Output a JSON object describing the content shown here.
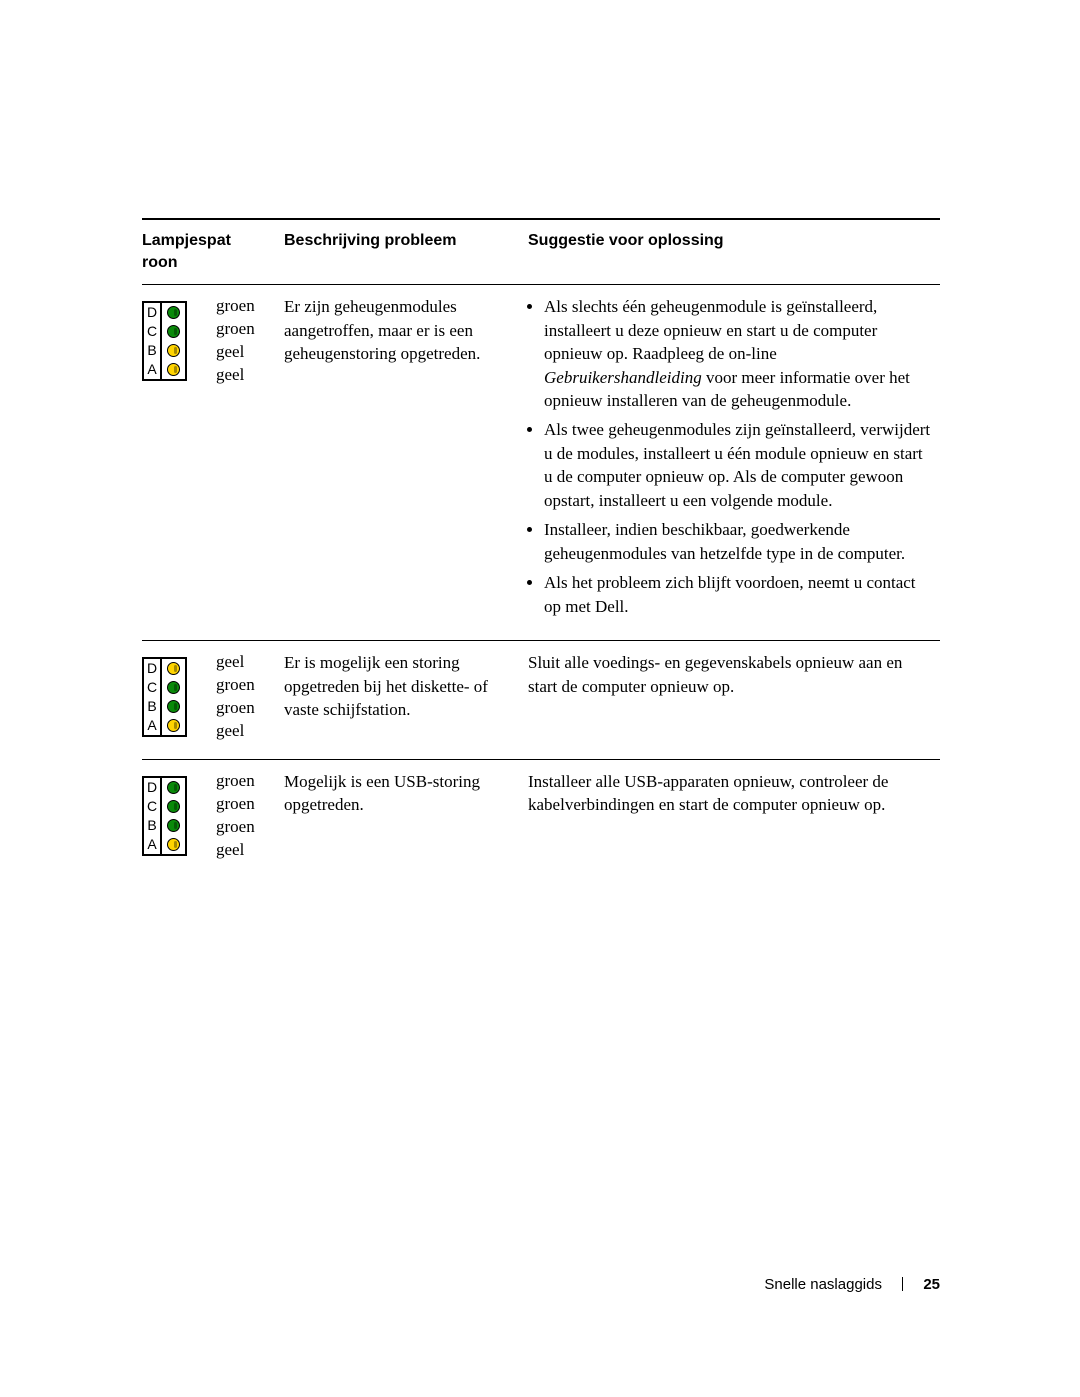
{
  "colors": {
    "groen": "#0a8a0a",
    "geel": "#ffd400",
    "border": "#000000",
    "background": "#ffffff",
    "text": "#000000"
  },
  "headers": {
    "col1": "Lampjespat\nroon",
    "col2": "Beschrijving probleem",
    "col3": "Suggestie voor oplossing"
  },
  "led_letters": [
    "D",
    "C",
    "B",
    "A"
  ],
  "rows": [
    {
      "led": [
        "groen",
        "groen",
        "geel",
        "geel"
      ],
      "labels": [
        "groen",
        "groen",
        "geel",
        "geel"
      ],
      "description": "Er zijn geheugenmodules aangetroffen, maar er is een geheugenstoring opgetreden.",
      "suggestions": [
        "Als slechts één geheugenmodule is geïnstalleerd, installeert u deze opnieuw en start u de computer opnieuw op. Raadpleeg de on-line <span class=\"italic\">Gebruikershandleiding</span> voor meer informatie over het opnieuw installeren van de geheugenmodule.",
        "Als twee geheugenmodules zijn geïnstalleerd, verwijdert u de modules, installeert u één module opnieuw en start u de computer opnieuw op. Als de computer gewoon opstart, installeert u een volgende module.",
        "Installeer, indien beschikbaar, goedwerkende geheugenmodules van hetzelfde type in de computer.",
        "Als het probleem zich blijft voordoen, neemt u contact op met Dell."
      ]
    },
    {
      "led": [
        "geel",
        "groen",
        "groen",
        "geel"
      ],
      "labels": [
        "geel",
        "groen",
        "groen",
        "geel"
      ],
      "description": "Er is mogelijk een storing opgetreden bij het diskette- of vaste schijfstation.",
      "suggestion_text": "Sluit alle voedings- en gegevenskabels opnieuw aan en start de computer opnieuw op."
    },
    {
      "led": [
        "groen",
        "groen",
        "groen",
        "geel"
      ],
      "labels": [
        "groen",
        "groen",
        "groen",
        "geel"
      ],
      "description": "Mogelijk is een USB-storing opgetreden.",
      "suggestion_text": "Installeer alle USB-apparaten opnieuw, controleer de kabelverbindingen en start de computer opnieuw op."
    }
  ],
  "footer": {
    "title": "Snelle naslaggids",
    "page_number": "25"
  }
}
